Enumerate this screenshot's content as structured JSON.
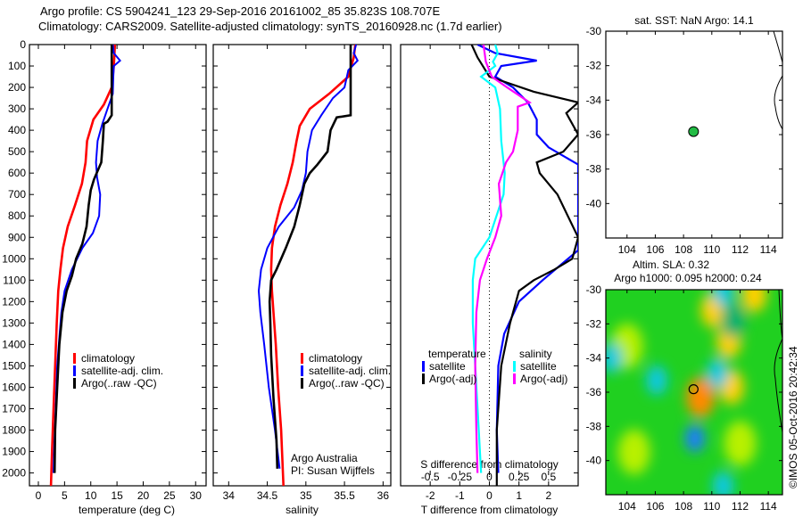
{
  "titles": {
    "line1": "Argo profile: CS 5904241_123 29-Sep-2016 20161002_85 35.823S 108.707E",
    "line2": "Climatology: CARS2009. Satellite-adjusted climatology: synTS_20160928.nc (1.7d earlier)"
  },
  "colors": {
    "climatology": "#ff0000",
    "satellite": "#0000ff",
    "argo": "#000000",
    "sal_satellite": "#00ffff",
    "sal_argo": "#ff00ff"
  },
  "chart_data": [
    {
      "id": "temperature",
      "type": "line",
      "xlabel": "temperature (deg C)",
      "ylabel": "",
      "xlim": [
        -1.7,
        32
      ],
      "ylim": [
        2060,
        0
      ],
      "xticks": [
        0,
        5,
        10,
        15,
        20,
        25,
        30
      ],
      "yticks": [
        0,
        100,
        200,
        300,
        400,
        500,
        600,
        700,
        800,
        900,
        1000,
        1100,
        1200,
        1300,
        1400,
        1500,
        1600,
        1700,
        1800,
        1900,
        2000
      ],
      "legend": [
        "climatology",
        "satellite-adj. clim.",
        "Argo(..raw -QC)"
      ],
      "legend_position": "lower-center",
      "series": [
        {
          "name": "climatology",
          "color": "#ff0000",
          "points": [
            [
              14.6,
              0
            ],
            [
              14.4,
              100
            ],
            [
              14.0,
              200
            ],
            [
              12.5,
              280
            ],
            [
              10.5,
              350
            ],
            [
              9.3,
              450
            ],
            [
              9.0,
              550
            ],
            [
              8.3,
              650
            ],
            [
              7.0,
              750
            ],
            [
              5.6,
              850
            ],
            [
              4.7,
              950
            ],
            [
              4.2,
              1050
            ],
            [
              3.8,
              1150
            ],
            [
              3.5,
              1300
            ],
            [
              3.2,
              1500
            ],
            [
              2.9,
              1700
            ],
            [
              2.6,
              1900
            ],
            [
              2.4,
              2060
            ]
          ]
        },
        {
          "name": "satellite-adj. clim.",
          "color": "#0000ff",
          "points": [
            [
              14.2,
              0
            ],
            [
              14.4,
              40
            ],
            [
              15.6,
              75
            ],
            [
              14.4,
              100
            ],
            [
              14.3,
              150
            ],
            [
              14.2,
              230
            ],
            [
              13.2,
              300
            ],
            [
              12.2,
              370
            ],
            [
              11.3,
              450
            ],
            [
              11.0,
              550
            ],
            [
              11.2,
              620
            ],
            [
              11.8,
              700
            ],
            [
              11.6,
              800
            ],
            [
              10.4,
              880
            ],
            [
              8.4,
              950
            ],
            [
              6.4,
              1050
            ],
            [
              5.0,
              1150
            ],
            [
              4.4,
              1250
            ],
            [
              3.9,
              1400
            ],
            [
              3.6,
              1500
            ],
            [
              3.3,
              1700
            ],
            [
              3.0,
              1900
            ],
            [
              2.9,
              2000
            ]
          ]
        },
        {
          "name": "Argo(..raw -QC)",
          "color": "#000000",
          "points": [
            [
              14.0,
              0
            ],
            [
              14.0,
              100
            ],
            [
              14.0,
              200
            ],
            [
              14.0,
              330
            ],
            [
              13.2,
              360
            ],
            [
              12.5,
              370
            ],
            [
              12.3,
              450
            ],
            [
              12.0,
              550
            ],
            [
              11.3,
              590
            ],
            [
              10.6,
              630
            ],
            [
              10.0,
              680
            ],
            [
              9.6,
              750
            ],
            [
              9.2,
              850
            ],
            [
              8.4,
              930
            ],
            [
              7.2,
              1000
            ],
            [
              6.4,
              1080
            ],
            [
              5.4,
              1150
            ],
            [
              4.6,
              1250
            ],
            [
              4.0,
              1400
            ],
            [
              3.6,
              1600
            ],
            [
              3.2,
              1800
            ],
            [
              3.1,
              2000
            ]
          ]
        }
      ]
    },
    {
      "id": "salinity",
      "type": "line",
      "xlabel": "salinity",
      "xlim": [
        33.8,
        36.1
      ],
      "ylim": [
        2060,
        0
      ],
      "xticks": [
        34,
        34.5,
        35,
        35.5,
        36
      ],
      "xticklabels": [
        "34",
        "34.5",
        "35",
        "35.5",
        "36"
      ],
      "legend": [
        "climatology",
        "satellite-adj. clim.",
        "Argo(..raw -QC)"
      ],
      "annotation": [
        "Argo Australia",
        "PI: Susan Wijffels"
      ],
      "series": [
        {
          "name": "climatology",
          "color": "#ff0000",
          "points": [
            [
              35.64,
              0
            ],
            [
              35.62,
              60
            ],
            [
              35.55,
              150
            ],
            [
              35.3,
              230
            ],
            [
              35.05,
              300
            ],
            [
              34.92,
              380
            ],
            [
              34.88,
              450
            ],
            [
              34.83,
              550
            ],
            [
              34.76,
              650
            ],
            [
              34.67,
              750
            ],
            [
              34.6,
              850
            ],
            [
              34.56,
              950
            ],
            [
              34.55,
              1050
            ],
            [
              34.56,
              1150
            ],
            [
              34.58,
              1250
            ],
            [
              34.61,
              1400
            ],
            [
              34.64,
              1600
            ],
            [
              34.68,
              1800
            ],
            [
              34.71,
              2060
            ]
          ]
        },
        {
          "name": "satellite-adj. clim.",
          "color": "#0000ff",
          "points": [
            [
              35.65,
              0
            ],
            [
              35.62,
              40
            ],
            [
              35.67,
              75
            ],
            [
              35.55,
              120
            ],
            [
              35.5,
              200
            ],
            [
              35.35,
              250
            ],
            [
              35.2,
              330
            ],
            [
              35.08,
              400
            ],
            [
              35.02,
              500
            ],
            [
              35.0,
              600
            ],
            [
              34.95,
              680
            ],
            [
              34.85,
              760
            ],
            [
              34.65,
              850
            ],
            [
              34.5,
              950
            ],
            [
              34.42,
              1050
            ],
            [
              34.39,
              1150
            ],
            [
              34.41,
              1250
            ],
            [
              34.46,
              1400
            ],
            [
              34.52,
              1600
            ],
            [
              34.6,
              1800
            ],
            [
              34.66,
              1980
            ]
          ]
        },
        {
          "name": "Argo(..raw -QC)",
          "color": "#000000",
          "points": [
            [
              35.58,
              0
            ],
            [
              35.58,
              100
            ],
            [
              35.58,
              200
            ],
            [
              35.58,
              330
            ],
            [
              35.4,
              340
            ],
            [
              35.32,
              400
            ],
            [
              35.28,
              500
            ],
            [
              35.15,
              560
            ],
            [
              35.05,
              600
            ],
            [
              34.98,
              650
            ],
            [
              34.92,
              750
            ],
            [
              34.85,
              850
            ],
            [
              34.74,
              950
            ],
            [
              34.62,
              1050
            ],
            [
              34.55,
              1100
            ],
            [
              34.53,
              1200
            ],
            [
              34.54,
              1300
            ],
            [
              34.55,
              1450
            ],
            [
              34.58,
              1650
            ],
            [
              34.62,
              1850
            ],
            [
              34.63,
              1980
            ]
          ]
        }
      ]
    },
    {
      "id": "difference",
      "type": "line",
      "xlabel": "T difference from climatology",
      "xlabel_top": "S difference from climatology",
      "xlim": [
        -3,
        3
      ],
      "s_xlim": [
        -0.75,
        0.75
      ],
      "ylim": [
        2060,
        0
      ],
      "xticks": [
        -2,
        -1,
        0,
        1,
        2
      ],
      "s_xticks": [
        -0.5,
        -0.25,
        0,
        0.25,
        0.5
      ],
      "s_xticklabels": [
        "-0.5",
        "-0.25",
        "0",
        "0.25",
        "0.5"
      ],
      "legend_temperature_header": "temperature",
      "legend_salinity_header": "salinity",
      "legend": [
        "satellite",
        "Argo(-adj)",
        "satellite",
        "Argo(-adj)"
      ],
      "series": [
        {
          "name": "temperature satellite",
          "color": "#0000ff",
          "points": [
            [
              -0.4,
              0
            ],
            [
              0.2,
              40
            ],
            [
              1.6,
              75
            ],
            [
              0.4,
              100
            ],
            [
              0.2,
              150
            ],
            [
              0.8,
              200
            ],
            [
              1.3,
              270
            ],
            [
              1.6,
              350
            ],
            [
              1.6,
              420
            ],
            [
              2.0,
              480
            ],
            [
              3.0,
              560
            ],
            [
              3.0,
              960
            ],
            [
              1.8,
              1100
            ],
            [
              1.0,
              1200
            ],
            [
              0.5,
              1350
            ],
            [
              0.3,
              1500
            ],
            [
              0.25,
              1800
            ],
            [
              0.3,
              2000
            ]
          ]
        },
        {
          "name": "temperature Argo(-adj)",
          "color": "#000000",
          "points": [
            [
              -0.6,
              0
            ],
            [
              -0.4,
              60
            ],
            [
              0,
              150
            ],
            [
              1.5,
              220
            ],
            [
              3.0,
              270
            ],
            [
              2.6,
              320
            ],
            [
              3.0,
              420
            ],
            [
              2.5,
              500
            ],
            [
              1.6,
              550
            ],
            [
              1.7,
              600
            ],
            [
              2.3,
              700
            ],
            [
              3.0,
              900
            ],
            [
              2.8,
              1000
            ],
            [
              2.2,
              1050
            ],
            [
              1.5,
              1100
            ],
            [
              1.0,
              1150
            ],
            [
              0.7,
              1300
            ],
            [
              0.4,
              1500
            ],
            [
              0.25,
              1800
            ],
            [
              0.25,
              2060
            ]
          ]
        },
        {
          "name": "salinity satellite",
          "color": "#00ffff",
          "points": [
            [
              0.05,
              0
            ],
            [
              0.07,
              40
            ],
            [
              0.03,
              80
            ],
            [
              0.05,
              100
            ],
            [
              -0.07,
              150
            ],
            [
              0.05,
              200
            ],
            [
              0.09,
              300
            ],
            [
              0.1,
              450
            ],
            [
              0.13,
              600
            ],
            [
              0.12,
              700
            ],
            [
              0.0,
              900
            ],
            [
              -0.12,
              1000
            ],
            [
              -0.14,
              1100
            ],
            [
              -0.14,
              1300
            ],
            [
              -0.12,
              1500
            ],
            [
              -0.09,
              1800
            ],
            [
              -0.07,
              2000
            ]
          ]
        },
        {
          "name": "salinity Argo(-adj)",
          "color": "#ff00ff",
          "points": [
            [
              -0.05,
              0
            ],
            [
              -0.03,
              80
            ],
            [
              0.02,
              150
            ],
            [
              0.15,
              200
            ],
            [
              0.34,
              270
            ],
            [
              0.24,
              290
            ],
            [
              0.24,
              400
            ],
            [
              0.2,
              500
            ],
            [
              0.14,
              550
            ],
            [
              0.08,
              650
            ],
            [
              0.1,
              800
            ],
            [
              0.05,
              900
            ],
            [
              -0.02,
              1000
            ],
            [
              -0.08,
              1100
            ],
            [
              -0.11,
              1250
            ],
            [
              -0.12,
              1500
            ],
            [
              -0.11,
              1800
            ],
            [
              -0.1,
              2000
            ]
          ]
        }
      ]
    },
    {
      "id": "sst-map",
      "type": "scatter",
      "title": "sat. SST: NaN Argo: 14.1",
      "xlim": [
        102.5,
        115
      ],
      "ylim": [
        -42,
        -30
      ],
      "xticks": [
        104,
        106,
        108,
        110,
        112,
        114
      ],
      "yticks": [
        -30,
        -32,
        -34,
        -36,
        -38,
        -40
      ],
      "points": [
        {
          "lon": 108.707,
          "lat": -35.823,
          "color": "#22bb44"
        }
      ]
    },
    {
      "id": "sla-map",
      "type": "heatmap",
      "title_line1": "Altim. SLA: 0.32",
      "title_line2": "Argo h1000: 0.095 h2000: 0.24",
      "side_label": "©IMOS 05-Oct-2016 20:42:34",
      "xlim": [
        102.5,
        115
      ],
      "ylim": [
        -42,
        -30
      ],
      "xticks": [
        104,
        106,
        108,
        110,
        112,
        114
      ],
      "yticks": [
        -30,
        -32,
        -34,
        -36,
        -38,
        -40
      ],
      "points": [
        {
          "lon": 108.707,
          "lat": -35.823
        }
      ],
      "features": [
        {
          "lon": 109.2,
          "lat": -36.3,
          "value": 0.9
        },
        {
          "lon": 110.1,
          "lat": -31.2,
          "value": 0.8
        },
        {
          "lon": 111.2,
          "lat": -33.0,
          "value": 0.7
        },
        {
          "lon": 111.4,
          "lat": -35.7,
          "value": 0.75
        },
        {
          "lon": 113.0,
          "lat": -30.3,
          "value": 0.7
        },
        {
          "lon": 104.0,
          "lat": -33.3,
          "value": 0.4
        },
        {
          "lon": 104.5,
          "lat": -39.5,
          "value": 0.4
        },
        {
          "lon": 112.0,
          "lat": -39.0,
          "value": 0.35
        },
        {
          "lon": 108.8,
          "lat": -38.7,
          "value": -0.9
        },
        {
          "lon": 106.1,
          "lat": -35.3,
          "value": -0.7
        },
        {
          "lon": 102.9,
          "lat": -34.0,
          "value": -0.6
        },
        {
          "lon": 110.4,
          "lat": -34.9,
          "value": -0.7
        },
        {
          "lon": 110.8,
          "lat": -30.1,
          "value": -0.7
        },
        {
          "lon": 110.8,
          "lat": -41.5,
          "value": -0.7
        },
        {
          "lon": 111.5,
          "lat": -31.8,
          "value": -0.3
        }
      ]
    }
  ]
}
